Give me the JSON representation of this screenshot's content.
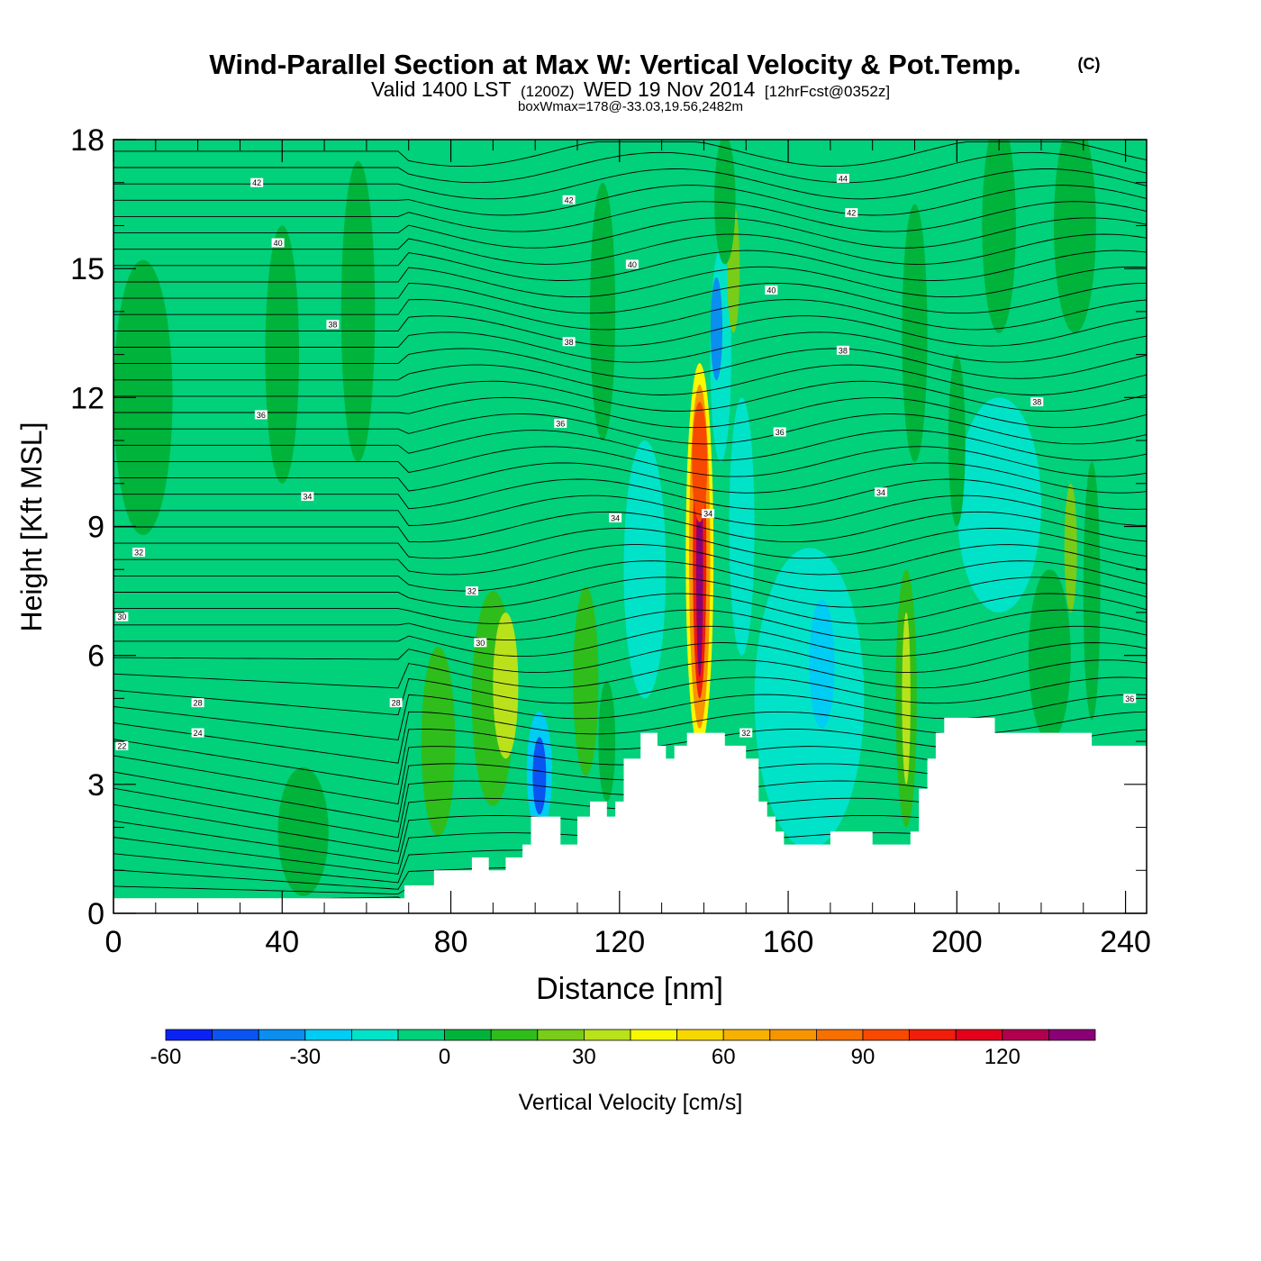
{
  "header": {
    "title": "Wind-Parallel Section at Max W: Vertical Velocity & Pot.Temp.",
    "copyright": "(C)",
    "valid_prefix": "Valid 1400 LST",
    "valid_utc": "(1200Z)",
    "valid_date": "WED 19 Nov 2014",
    "forecast": "[12hrFcst@0352z]",
    "boxwmax": "boxWmax=178@-33.03,19.56,2482m"
  },
  "chart_data": {
    "type": "heatmap",
    "title": "Wind-Parallel Section at Max W: Vertical Velocity & Pot.Temp.",
    "xlabel": "Distance [nm]",
    "ylabel": "Height [Kft MSL]",
    "xlim": [
      0,
      245
    ],
    "ylim": [
      0,
      18
    ],
    "x_ticks": [
      "0",
      "40",
      "80",
      "120",
      "160",
      "200",
      "240"
    ],
    "y_ticks": [
      "0",
      "3",
      "6",
      "9",
      "12",
      "15",
      "18"
    ],
    "x_tick_values": [
      0,
      40,
      80,
      120,
      160,
      200,
      240
    ],
    "y_tick_values": [
      0,
      3,
      6,
      9,
      12,
      15,
      18
    ],
    "background_color": "#00d17a",
    "terrain": [
      [
        0,
        0.35
      ],
      [
        69,
        0.35
      ],
      [
        69,
        0.65
      ],
      [
        76,
        0.65
      ],
      [
        76,
        1.0
      ],
      [
        85,
        1.0
      ],
      [
        85,
        1.3
      ],
      [
        89,
        1.3
      ],
      [
        89,
        1.0
      ],
      [
        93,
        1.0
      ],
      [
        93,
        1.3
      ],
      [
        97,
        1.3
      ],
      [
        97,
        1.6
      ],
      [
        99,
        1.6
      ],
      [
        99,
        2.25
      ],
      [
        106,
        2.25
      ],
      [
        106,
        1.6
      ],
      [
        110,
        1.6
      ],
      [
        110,
        2.25
      ],
      [
        113,
        2.25
      ],
      [
        113,
        2.6
      ],
      [
        117,
        2.6
      ],
      [
        117,
        2.25
      ],
      [
        119,
        2.25
      ],
      [
        119,
        2.6
      ],
      [
        121,
        2.6
      ],
      [
        121,
        3.6
      ],
      [
        125,
        3.6
      ],
      [
        125,
        4.2
      ],
      [
        129,
        4.2
      ],
      [
        129,
        3.9
      ],
      [
        131,
        3.9
      ],
      [
        131,
        3.6
      ],
      [
        133,
        3.6
      ],
      [
        133,
        3.9
      ],
      [
        136,
        3.9
      ],
      [
        136,
        4.2
      ],
      [
        145,
        4.2
      ],
      [
        145,
        3.9
      ],
      [
        150,
        3.9
      ],
      [
        150,
        3.6
      ],
      [
        153,
        3.6
      ],
      [
        153,
        2.6
      ],
      [
        155,
        2.6
      ],
      [
        155,
        2.25
      ],
      [
        157,
        2.25
      ],
      [
        157,
        1.9
      ],
      [
        159,
        1.9
      ],
      [
        159,
        1.6
      ],
      [
        170,
        1.6
      ],
      [
        170,
        1.9
      ],
      [
        180,
        1.9
      ],
      [
        180,
        1.6
      ],
      [
        189,
        1.6
      ],
      [
        189,
        1.9
      ],
      [
        191,
        1.9
      ],
      [
        191,
        2.9
      ],
      [
        193,
        2.9
      ],
      [
        193,
        3.6
      ],
      [
        195,
        3.6
      ],
      [
        195,
        4.2
      ],
      [
        197,
        4.2
      ],
      [
        197,
        4.55
      ],
      [
        209,
        4.55
      ],
      [
        209,
        4.2
      ],
      [
        232,
        4.2
      ],
      [
        232,
        3.9
      ],
      [
        245,
        3.9
      ]
    ],
    "w_cells": [
      {
        "x": 7,
        "z": 12.0,
        "v": 5,
        "rx": 7,
        "rz": 3.2
      },
      {
        "x": 40,
        "z": 13.0,
        "v": 5,
        "rx": 4,
        "rz": 3.0
      },
      {
        "x": 58,
        "z": 14.0,
        "v": 5,
        "rx": 4,
        "rz": 3.5
      },
      {
        "x": 45,
        "z": 1.9,
        "v": 5,
        "rx": 6,
        "rz": 1.5
      },
      {
        "x": 73,
        "z": 3.4,
        "v": -8,
        "rx": 4,
        "rz": 1.3
      },
      {
        "x": 77,
        "z": 4.0,
        "v": 15,
        "rx": 4,
        "rz": 2.2
      },
      {
        "x": 84,
        "z": 3.7,
        "v": -5,
        "rx": 3,
        "rz": 1.4
      },
      {
        "x": 90,
        "z": 5.0,
        "v": 18,
        "rx": 5,
        "rz": 2.5
      },
      {
        "x": 93,
        "z": 5.3,
        "v": 30,
        "rx": 3,
        "rz": 1.7
      },
      {
        "x": 101,
        "z": 3.3,
        "v": -30,
        "rx": 3,
        "rz": 1.4
      },
      {
        "x": 101,
        "z": 3.2,
        "v": -48,
        "rx": 1.6,
        "rz": 0.9
      },
      {
        "x": 108,
        "z": 3.6,
        "v": -10,
        "rx": 3,
        "rz": 1.3
      },
      {
        "x": 112,
        "z": 5.4,
        "v": 15,
        "rx": 3,
        "rz": 2.2
      },
      {
        "x": 117,
        "z": 4.0,
        "v": 8,
        "rx": 2,
        "rz": 1.4
      },
      {
        "x": 126,
        "z": 8.0,
        "v": -12,
        "rx": 5,
        "rz": 3.0
      },
      {
        "x": 116,
        "z": 14.0,
        "v": 5,
        "rx": 3,
        "rz": 3.0
      },
      {
        "x": 139,
        "z": 8.3,
        "v": 40,
        "rx": 3.3,
        "rz": 4.5
      },
      {
        "x": 139,
        "z": 8.3,
        "v": 70,
        "rx": 2.5,
        "rz": 4.0
      },
      {
        "x": 139,
        "z": 8.3,
        "v": 100,
        "rx": 1.6,
        "rz": 3.3
      },
      {
        "x": 139,
        "z": 8.0,
        "v": 130,
        "rx": 0.8,
        "rz": 2.5
      },
      {
        "x": 139,
        "z": 10.5,
        "v": 90,
        "rx": 1.8,
        "rz": 1.4
      },
      {
        "x": 144,
        "z": 13.0,
        "v": -20,
        "rx": 2.5,
        "rz": 2.5
      },
      {
        "x": 143,
        "z": 13.6,
        "v": -38,
        "rx": 1.4,
        "rz": 1.2
      },
      {
        "x": 149,
        "z": 9.0,
        "v": -15,
        "rx": 3,
        "rz": 3.0
      },
      {
        "x": 147,
        "z": 15.0,
        "v": 25,
        "rx": 1.5,
        "rz": 1.5
      },
      {
        "x": 145,
        "z": 16.6,
        "v": 5,
        "rx": 2.5,
        "rz": 1.5
      },
      {
        "x": 165,
        "z": 5.0,
        "v": -12,
        "rx": 13,
        "rz": 3.5
      },
      {
        "x": 168,
        "z": 5.8,
        "v": -25,
        "rx": 3,
        "rz": 1.5
      },
      {
        "x": 188,
        "z": 5.0,
        "v": 15,
        "rx": 2.5,
        "rz": 3.0
      },
      {
        "x": 188,
        "z": 5.0,
        "v": 35,
        "rx": 1.0,
        "rz": 2.0
      },
      {
        "x": 210,
        "z": 9.5,
        "v": -12,
        "rx": 10,
        "rz": 2.5
      },
      {
        "x": 222,
        "z": 6.0,
        "v": 5,
        "rx": 5,
        "rz": 2.0
      },
      {
        "x": 227,
        "z": 8.5,
        "v": 20,
        "rx": 1.5,
        "rz": 1.5
      },
      {
        "x": 232,
        "z": 7.5,
        "v": 5,
        "rx": 2,
        "rz": 3.0
      },
      {
        "x": 190,
        "z": 13.5,
        "v": 5,
        "rx": 3,
        "rz": 3.0
      },
      {
        "x": 210,
        "z": 16.0,
        "v": 5,
        "rx": 4,
        "rz": 2.5
      },
      {
        "x": 228,
        "z": 16.0,
        "v": 5,
        "rx": 5,
        "rz": 2.5
      },
      {
        "x": 200,
        "z": 11.0,
        "v": 5,
        "rx": 2,
        "rz": 2.0
      }
    ],
    "isentrope_labels": [
      {
        "text": "44",
        "x": 173,
        "z": 17.1
      },
      {
        "text": "42",
        "x": 34,
        "z": 17.0
      },
      {
        "text": "42",
        "x": 108,
        "z": 16.6
      },
      {
        "text": "42",
        "x": 175,
        "z": 16.3
      },
      {
        "text": "40",
        "x": 39,
        "z": 15.6
      },
      {
        "text": "40",
        "x": 123,
        "z": 15.1
      },
      {
        "text": "40",
        "x": 156,
        "z": 14.5
      },
      {
        "text": "38",
        "x": 52,
        "z": 13.7
      },
      {
        "text": "38",
        "x": 108,
        "z": 13.3
      },
      {
        "text": "38",
        "x": 173,
        "z": 13.1
      },
      {
        "text": "38",
        "x": 219,
        "z": 11.9
      },
      {
        "text": "36",
        "x": 35,
        "z": 11.6
      },
      {
        "text": "36",
        "x": 106,
        "z": 11.4
      },
      {
        "text": "36",
        "x": 158,
        "z": 11.2
      },
      {
        "text": "34",
        "x": 46,
        "z": 9.7
      },
      {
        "text": "34",
        "x": 119,
        "z": 9.2
      },
      {
        "text": "34",
        "x": 141,
        "z": 9.3
      },
      {
        "text": "34",
        "x": 182,
        "z": 9.8
      },
      {
        "text": "32",
        "x": 6,
        "z": 8.4
      },
      {
        "text": "32",
        "x": 85,
        "z": 7.5
      },
      {
        "text": "30",
        "x": 2,
        "z": 6.9
      },
      {
        "text": "30",
        "x": 87,
        "z": 6.3
      },
      {
        "text": "28",
        "x": 20,
        "z": 4.9
      },
      {
        "text": "28",
        "x": 67,
        "z": 4.9
      },
      {
        "text": "24",
        "x": 20,
        "z": 4.2
      },
      {
        "text": "22",
        "x": 2,
        "z": 3.9
      },
      {
        "text": "32",
        "x": 150,
        "z": 4.2
      },
      {
        "text": "36",
        "x": 241,
        "z": 5.0
      }
    ],
    "colorbar": {
      "label": "Vertical Velocity [cm/s]",
      "tick_labels": [
        "-60",
        "-30",
        "0",
        "30",
        "60",
        "90",
        "120"
      ],
      "tick_values": [
        -60,
        -30,
        0,
        30,
        60,
        90,
        120
      ],
      "bins": [
        -60,
        -50,
        -40,
        -30,
        -20,
        -10,
        0,
        10,
        20,
        30,
        40,
        50,
        60,
        70,
        80,
        90,
        100,
        110,
        120,
        130,
        140
      ],
      "colors": [
        "#0b22f5",
        "#0a55f2",
        "#0a8ef0",
        "#00ccf4",
        "#00e3c9",
        "#00d17a",
        "#00b33b",
        "#2fbd1c",
        "#79cc18",
        "#b9e21b",
        "#f7f700",
        "#f7d700",
        "#f7b200",
        "#f79500",
        "#f77000",
        "#f74a00",
        "#f01e0a",
        "#e3001b",
        "#b1004d",
        "#8a0076"
      ]
    }
  }
}
